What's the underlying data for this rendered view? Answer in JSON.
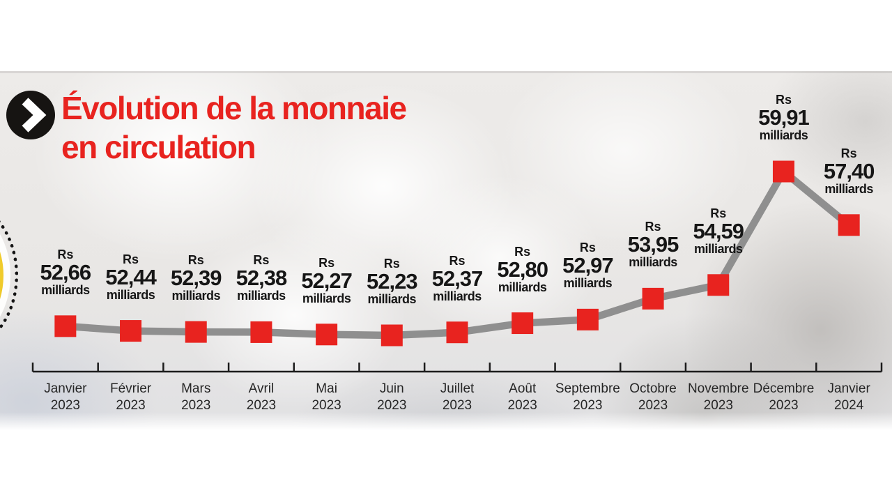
{
  "title": {
    "line1": "Évolution de la monnaie",
    "line2": "en circulation"
  },
  "colors": {
    "accent_red": "#e8231f",
    "line_gray": "#8f8f8f",
    "axis_black": "#1c1c1c",
    "text_black": "#161616",
    "coin_gold": "#edc524"
  },
  "icons": {
    "title_bullet": "chevron-right-icon",
    "coin_edge": "dotted-coin-icon"
  },
  "chart_data": {
    "type": "line",
    "title": "Évolution de la monnaie en circulation",
    "currency_prefix": "Rs",
    "unit_suffix": "milliards",
    "marker": "red-square",
    "line_color": "#8f8f8f",
    "marker_color": "#e8231f",
    "grid": false,
    "legend": null,
    "ylim": [
      52.0,
      60.5
    ],
    "categories": [
      {
        "month": "Janvier",
        "year": "2023"
      },
      {
        "month": "Février",
        "year": "2023"
      },
      {
        "month": "Mars",
        "year": "2023"
      },
      {
        "month": "Avril",
        "year": "2023"
      },
      {
        "month": "Mai",
        "year": "2023"
      },
      {
        "month": "Juin",
        "year": "2023"
      },
      {
        "month": "Juillet",
        "year": "2023"
      },
      {
        "month": "Août",
        "year": "2023"
      },
      {
        "month": "Septembre",
        "year": "2023"
      },
      {
        "month": "Octobre",
        "year": "2023"
      },
      {
        "month": "Novembre",
        "year": "2023"
      },
      {
        "month": "Décembre",
        "year": "2023"
      },
      {
        "month": "Janvier",
        "year": "2024"
      }
    ],
    "values": [
      52.66,
      52.44,
      52.39,
      52.38,
      52.27,
      52.23,
      52.37,
      52.8,
      52.97,
      53.95,
      54.59,
      59.91,
      57.4
    ],
    "value_labels": [
      "52,66",
      "52,44",
      "52,39",
      "52,38",
      "52,27",
      "52,23",
      "52,37",
      "52,80",
      "52,97",
      "53,95",
      "54,59",
      "59,91",
      "57,40"
    ]
  }
}
